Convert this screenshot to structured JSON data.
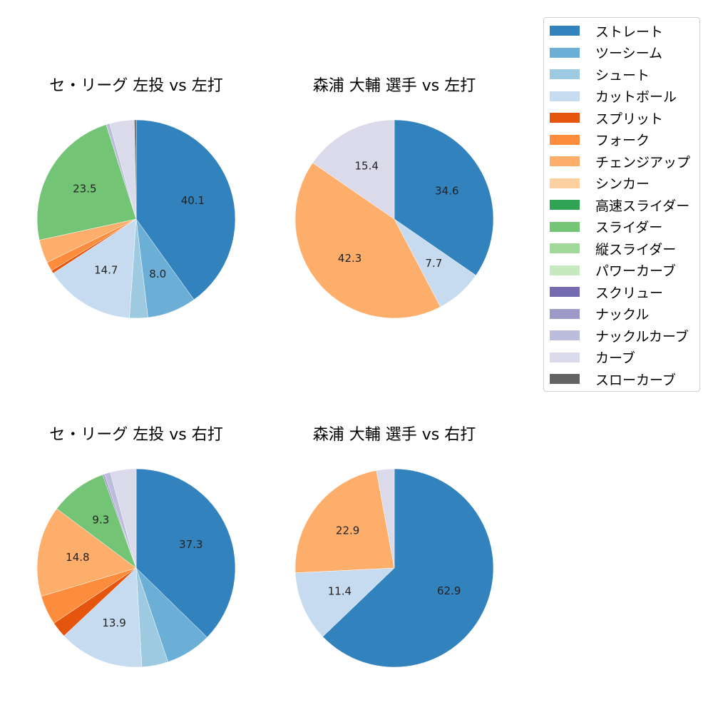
{
  "legend": {
    "items": [
      {
        "label": "ストレート",
        "color": "#3182bd"
      },
      {
        "label": "ツーシーム",
        "color": "#6baed6"
      },
      {
        "label": "シュート",
        "color": "#9ecae1"
      },
      {
        "label": "カットボール",
        "color": "#c6dbef"
      },
      {
        "label": "スプリット",
        "color": "#e6550d"
      },
      {
        "label": "フォーク",
        "color": "#fd8d3c"
      },
      {
        "label": "チェンジアップ",
        "color": "#fdae6b"
      },
      {
        "label": "シンカー",
        "color": "#fdd0a2"
      },
      {
        "label": "高速スライダー",
        "color": "#31a354"
      },
      {
        "label": "スライダー",
        "color": "#74c476"
      },
      {
        "label": "縦スライダー",
        "color": "#a1d99b"
      },
      {
        "label": "パワーカーブ",
        "color": "#c7e9c0"
      },
      {
        "label": "スクリュー",
        "color": "#756bb1"
      },
      {
        "label": "ナックル",
        "color": "#9e9ac8"
      },
      {
        "label": "ナックルカーブ",
        "color": "#bcbddc"
      },
      {
        "label": "カーブ",
        "color": "#dadaeb"
      },
      {
        "label": "スローカーブ",
        "color": "#636363"
      }
    ]
  },
  "chart_data": [
    {
      "type": "pie",
      "title": "セ・リーグ 左投 vs 左打",
      "startangle": 90,
      "counterclock": false,
      "slices": [
        {
          "label": "ストレート",
          "value": 40.1,
          "show_label": true
        },
        {
          "label": "ツーシーム",
          "value": 8.0,
          "show_label": true
        },
        {
          "label": "シュート",
          "value": 3.0,
          "show_label": false
        },
        {
          "label": "カットボール",
          "value": 14.7,
          "show_label": true
        },
        {
          "label": "スプリット",
          "value": 0.5,
          "show_label": false
        },
        {
          "label": "フォーク",
          "value": 1.5,
          "show_label": false
        },
        {
          "label": "チェンジアップ",
          "value": 3.8,
          "show_label": false
        },
        {
          "label": "スライダー",
          "value": 23.5,
          "show_label": true
        },
        {
          "label": "ナックルカーブ",
          "value": 0.6,
          "show_label": false
        },
        {
          "label": "カーブ",
          "value": 4.0,
          "show_label": false
        },
        {
          "label": "スローカーブ",
          "value": 0.3,
          "show_label": false
        }
      ]
    },
    {
      "type": "pie",
      "title": "森浦 大輔 選手 vs 左打",
      "startangle": 90,
      "counterclock": false,
      "slices": [
        {
          "label": "ストレート",
          "value": 34.6,
          "show_label": true
        },
        {
          "label": "カットボール",
          "value": 7.7,
          "show_label": true
        },
        {
          "label": "チェンジアップ",
          "value": 42.3,
          "show_label": true
        },
        {
          "label": "カーブ",
          "value": 15.4,
          "show_label": true
        }
      ]
    },
    {
      "type": "pie",
      "title": "セ・リーグ 左投 vs 右打",
      "startangle": 90,
      "counterclock": false,
      "slices": [
        {
          "label": "ストレート",
          "value": 37.3,
          "show_label": true
        },
        {
          "label": "ツーシーム",
          "value": 7.5,
          "show_label": false
        },
        {
          "label": "シュート",
          "value": 4.3,
          "show_label": false
        },
        {
          "label": "カットボール",
          "value": 13.9,
          "show_label": true
        },
        {
          "label": "スプリット",
          "value": 2.6,
          "show_label": false
        },
        {
          "label": "フォーク",
          "value": 4.8,
          "show_label": false
        },
        {
          "label": "チェンジアップ",
          "value": 14.8,
          "show_label": true
        },
        {
          "label": "スライダー",
          "value": 9.3,
          "show_label": true
        },
        {
          "label": "ナックル",
          "value": 0.3,
          "show_label": false
        },
        {
          "label": "ナックルカーブ",
          "value": 1.0,
          "show_label": false
        },
        {
          "label": "カーブ",
          "value": 4.2,
          "show_label": false
        }
      ]
    },
    {
      "type": "pie",
      "title": "森浦 大輔 選手 vs 右打",
      "startangle": 90,
      "counterclock": false,
      "slices": [
        {
          "label": "ストレート",
          "value": 62.9,
          "show_label": true
        },
        {
          "label": "カットボール",
          "value": 11.4,
          "show_label": true
        },
        {
          "label": "チェンジアップ",
          "value": 22.9,
          "show_label": true
        },
        {
          "label": "カーブ",
          "value": 2.9,
          "show_label": false
        }
      ]
    }
  ]
}
